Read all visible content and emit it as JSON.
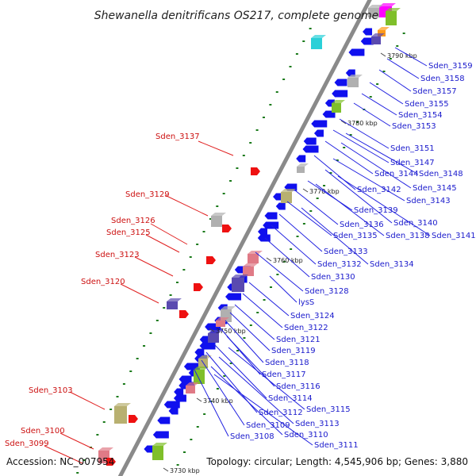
{
  "title": "Shewanella denitrificans OS217, complete genome",
  "footer": {
    "accession": "Accession: NC_007954",
    "summary": "Topology: circular; Length: 4,545,906 bp; Genes: 3,880"
  },
  "ticks": [
    "3730 kbp",
    "3740 kbp",
    "3750 kbp",
    "3760 kbp",
    "3770 kbp",
    "3780 kbp",
    "3790 kbp"
  ],
  "right_labels": [
    "Sden_3159",
    "Sden_3158",
    "Sden_3157",
    "Sden_3155",
    "Sden_3154",
    "Sden_3153",
    "Sden_3151",
    "Sden_3147",
    "Sden_3144",
    "Sden_3148",
    "Sden_3145",
    "Sden_3142",
    "Sden_3143",
    "Sden_3139",
    "Sden_3140",
    "Sden_3136",
    "Sden_3135",
    "Sden_3138",
    "Sden_3141",
    "Sden_3133",
    "Sden_3132",
    "Sden_3134",
    "Sden_3130",
    "Sden_3128",
    "lysS",
    "Sden_3124",
    "Sden_3122",
    "Sden_3121",
    "Sden_3119",
    "Sden_3118",
    "Sden_3117",
    "Sden_3116",
    "Sden_3114",
    "Sden_3115",
    "Sden_3112",
    "Sden_3113",
    "Sden_3109",
    "Sden_3110",
    "Sden_3108",
    "Sden_3111"
  ],
  "left_labels": [
    "Sden_3137",
    "Sden_3129",
    "Sden_3126",
    "Sden_3125",
    "Sden_3123",
    "Sden_3120",
    "Sden_3103",
    "Sden_3100",
    "Sden_3099"
  ],
  "colors": {
    "backbone": "#8a8a8a",
    "gene_forward": "#1010ee",
    "gene_reverse": "#ee1111",
    "line_blue": "#2020e0",
    "line_red": "#e02020",
    "tick_green": "#1a7a1a",
    "boxes": [
      "#b0b0b0",
      "#2ad0d8",
      "#7fbf2a",
      "#ff9a1a",
      "#b8b070",
      "#e07a86",
      "#5a4ab0",
      "#ff00ff"
    ]
  }
}
